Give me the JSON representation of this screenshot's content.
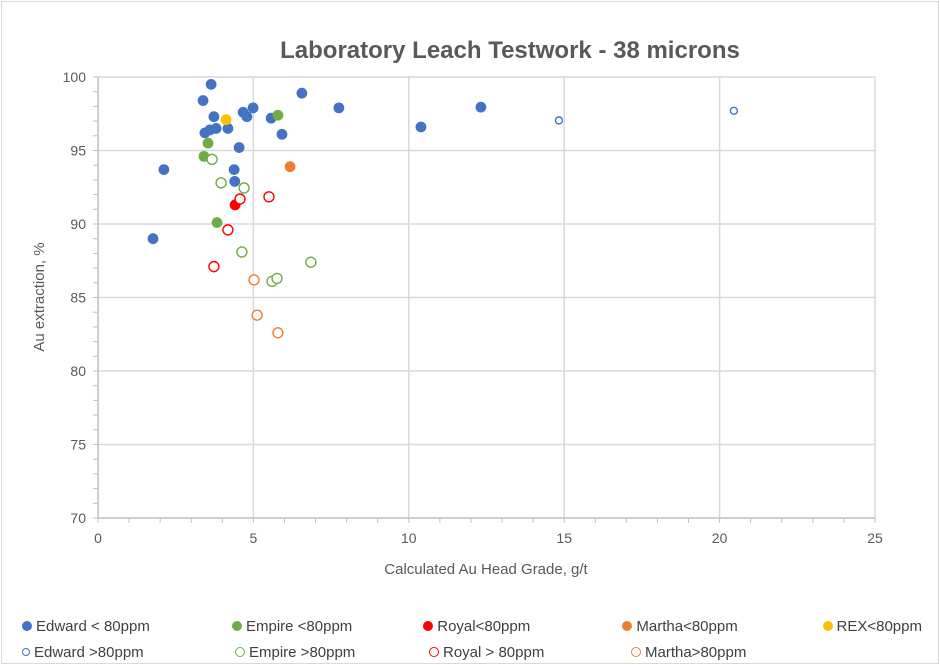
{
  "chart_data": {
    "type": "scatter",
    "title": "Laboratory Leach Testwork - 38 microns",
    "xlabel": "Calculated Au Head Grade, g/t",
    "ylabel": "Au extraction, %",
    "xlim": [
      0,
      25
    ],
    "ylim": [
      70,
      100
    ],
    "xticks": [
      "0",
      "5",
      "10",
      "15",
      "20",
      "25"
    ],
    "yticks": [
      "70",
      "75",
      "80",
      "85",
      "90",
      "95",
      "100"
    ],
    "grid": "vertical and horizontal major",
    "legend_position": "bottom",
    "series": [
      {
        "name": "Edward < 80ppm",
        "color": "#4472C4",
        "filled": true,
        "small": false,
        "points": [
          [
            3.64,
            99.5
          ],
          [
            3.38,
            98.4
          ],
          [
            3.73,
            97.3
          ],
          [
            4.67,
            97.6
          ],
          [
            4.99,
            97.9
          ],
          [
            4.79,
            97.3
          ],
          [
            5.57,
            97.2
          ],
          [
            6.56,
            98.9
          ],
          [
            7.75,
            97.9
          ],
          [
            3.44,
            96.2
          ],
          [
            3.6,
            96.4
          ],
          [
            3.8,
            96.5
          ],
          [
            4.18,
            96.5
          ],
          [
            5.92,
            96.1
          ],
          [
            4.54,
            95.2
          ],
          [
            2.12,
            93.7
          ],
          [
            4.38,
            93.7
          ],
          [
            4.4,
            92.9
          ],
          [
            1.77,
            89.0
          ],
          [
            10.39,
            96.6
          ],
          [
            12.32,
            97.95
          ]
        ]
      },
      {
        "name": "Empire <80ppm",
        "color": "#70AD47",
        "filled": true,
        "small": false,
        "points": [
          [
            5.79,
            97.4
          ],
          [
            3.54,
            95.5
          ],
          [
            3.41,
            94.6
          ],
          [
            3.83,
            90.1
          ]
        ]
      },
      {
        "name": "Royal<80ppm",
        "color": "#FF0000",
        "filled": true,
        "small": false,
        "points": [
          [
            4.41,
            91.3
          ]
        ]
      },
      {
        "name": "Martha<80ppm",
        "color": "#ED7D31",
        "filled": true,
        "small": false,
        "points": [
          [
            6.18,
            93.9
          ]
        ]
      },
      {
        "name": "REX<80ppm",
        "color": "#FFC000",
        "filled": true,
        "small": false,
        "points": [
          [
            4.12,
            97.1
          ]
        ]
      },
      {
        "name": "Edward >80ppm",
        "color": "#4472C4",
        "filled": false,
        "small": true,
        "points": [
          [
            14.83,
            97.05
          ],
          [
            20.46,
            97.7
          ]
        ]
      },
      {
        "name": "Empire >80ppm",
        "color": "#70AD47",
        "filled": false,
        "small": false,
        "points": [
          [
            3.67,
            94.4
          ],
          [
            3.96,
            92.8
          ],
          [
            4.7,
            92.45
          ],
          [
            4.63,
            88.1
          ],
          [
            6.85,
            87.4
          ],
          [
            5.6,
            86.1
          ],
          [
            5.76,
            86.3
          ]
        ]
      },
      {
        "name": "Royal > 80ppm",
        "color": "#FF0000",
        "filled": false,
        "small": false,
        "points": [
          [
            4.57,
            91.7
          ],
          [
            5.5,
            91.85
          ],
          [
            4.18,
            89.6
          ],
          [
            3.73,
            87.1
          ]
        ]
      },
      {
        "name": "Martha>80ppm",
        "color": "#ED7D31",
        "filled": false,
        "small": false,
        "points": [
          [
            5.02,
            86.2
          ],
          [
            5.12,
            83.8
          ],
          [
            5.79,
            82.6
          ]
        ]
      }
    ]
  }
}
